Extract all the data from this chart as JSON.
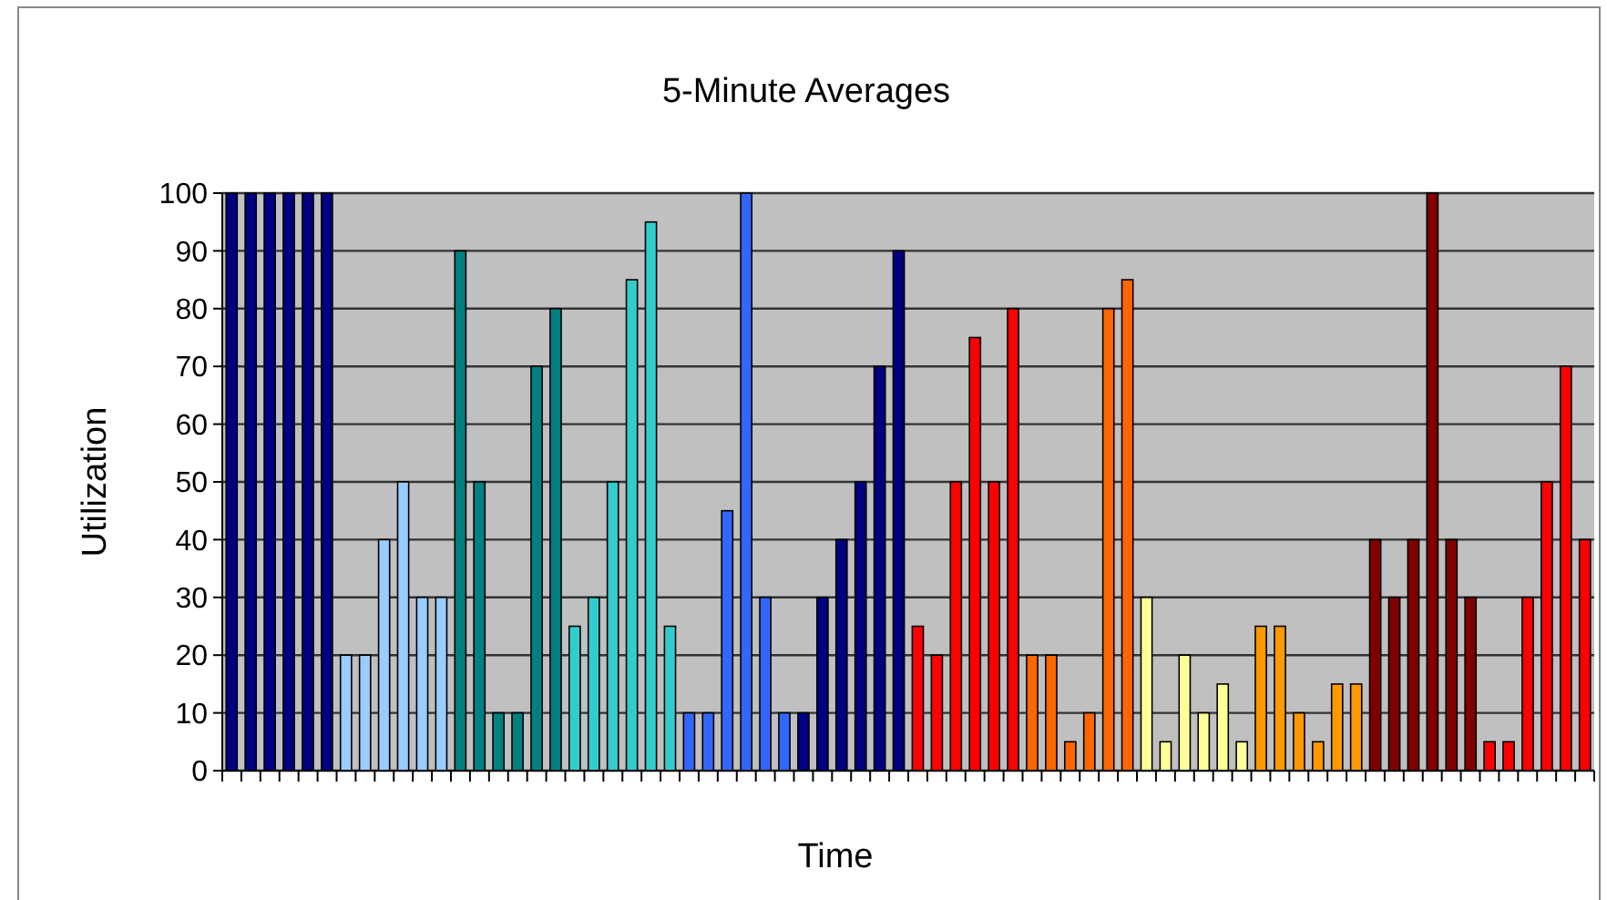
{
  "chart_data": {
    "type": "bar",
    "title": "5-Minute Averages",
    "xlabel": "Time",
    "ylabel": "Utilization",
    "categories": [
      null,
      null,
      null,
      null,
      null,
      null,
      null,
      null,
      null,
      null,
      null,
      null,
      null,
      null,
      null,
      null,
      null,
      null,
      null,
      null,
      null,
      null,
      null,
      null,
      null,
      null,
      null,
      null,
      null,
      null,
      null,
      null,
      null,
      null,
      null,
      null,
      null,
      null,
      null,
      null,
      null,
      null,
      null,
      null,
      null,
      null,
      null,
      null,
      null,
      null,
      null,
      null,
      null,
      null,
      null,
      null,
      null,
      null,
      null,
      null,
      null,
      null,
      null,
      null,
      null,
      null,
      null,
      null,
      null,
      null,
      null,
      null
    ],
    "values": [
      100,
      100,
      100,
      100,
      100,
      100,
      20,
      20,
      40,
      50,
      30,
      30,
      90,
      50,
      10,
      10,
      70,
      80,
      25,
      30,
      50,
      85,
      95,
      25,
      10,
      10,
      45,
      100,
      30,
      10,
      10,
      30,
      40,
      50,
      70,
      90,
      25,
      20,
      50,
      75,
      50,
      80,
      20,
      20,
      5,
      10,
      80,
      85,
      30,
      5,
      20,
      10,
      15,
      5,
      25,
      25,
      10,
      5,
      15,
      15,
      40,
      30,
      40,
      100,
      40,
      30,
      5,
      5,
      30,
      50,
      70,
      40
    ],
    "colors": [
      "#000080",
      "#000080",
      "#000080",
      "#000080",
      "#000080",
      "#000080",
      "#99ccff",
      "#99ccff",
      "#99ccff",
      "#99ccff",
      "#99ccff",
      "#99ccff",
      "#008080",
      "#008080",
      "#008080",
      "#008080",
      "#008080",
      "#008080",
      "#33cccc",
      "#33cccc",
      "#33cccc",
      "#33cccc",
      "#33cccc",
      "#33cccc",
      "#3366ff",
      "#3366ff",
      "#3366ff",
      "#3366ff",
      "#3366ff",
      "#3366ff",
      "#000080",
      "#000080",
      "#000080",
      "#000080",
      "#000080",
      "#000080",
      "#ff0000",
      "#ff0000",
      "#ff0000",
      "#ff0000",
      "#ff0000",
      "#ff0000",
      "#ff6600",
      "#ff6600",
      "#ff6600",
      "#ff6600",
      "#ff6600",
      "#ff6600",
      "#ffff99",
      "#ffff99",
      "#ffff99",
      "#ffff99",
      "#ffff99",
      "#ffff99",
      "#ff9900",
      "#ff9900",
      "#ff9900",
      "#ff9900",
      "#ff9900",
      "#ff9900",
      "#800000",
      "#800000",
      "#800000",
      "#800000",
      "#800000",
      "#800000",
      "#ff0000",
      "#ff0000",
      "#ff0000",
      "#ff0000",
      "#ff0000",
      "#ff0000"
    ],
    "ylim": [
      0,
      100
    ],
    "yticks": [
      0,
      10,
      20,
      30,
      40,
      50,
      60,
      70,
      80,
      90,
      100
    ],
    "grid": "y"
  }
}
